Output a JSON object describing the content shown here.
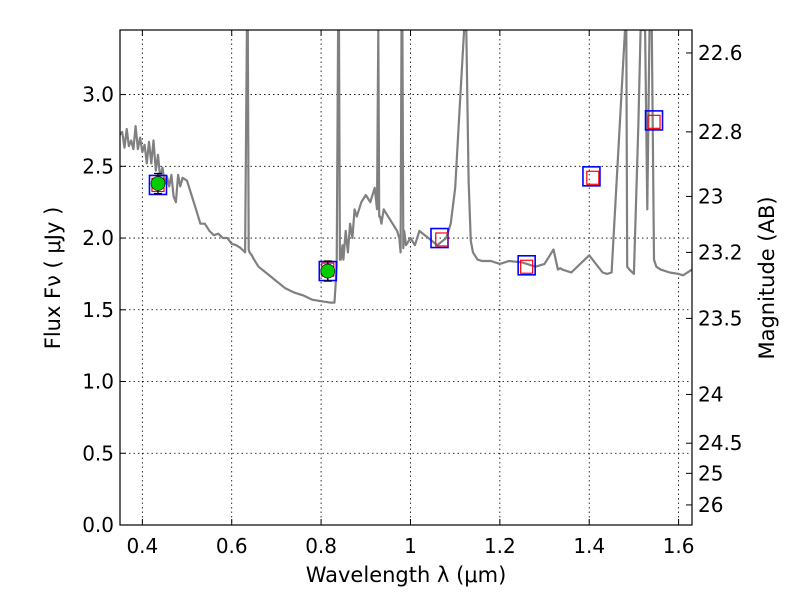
{
  "chart_data": {
    "type": "line",
    "xlabel": "Wavelength  λ (μm)",
    "ylabel": "Flux  Fν  ( μJy )",
    "ylabel2": "Magnitude (AB)",
    "xlim": [
      0.35,
      1.63
    ],
    "ylim": [
      0.0,
      3.45
    ],
    "grid": true,
    "x_ticks": [
      0.4,
      0.6,
      0.8,
      1.0,
      1.2,
      1.4,
      1.6
    ],
    "x_tick_labels": [
      "0.4",
      "0.6",
      "0.8",
      "1",
      "1.2",
      "1.4",
      "1.6"
    ],
    "y_ticks": [
      0.0,
      0.5,
      1.0,
      1.5,
      2.0,
      2.5,
      3.0
    ],
    "y_tick_labels": [
      "0.0",
      "0.5",
      "1.0",
      "1.5",
      "2.0",
      "2.5",
      "3.0"
    ],
    "mag_ticks": [
      {
        "label": "22.6",
        "flux": 3.29
      },
      {
        "label": "22.8",
        "flux": 2.74
      },
      {
        "label": "23",
        "flux": 2.29
      },
      {
        "label": "23.2",
        "flux": 1.9
      },
      {
        "label": "23.5",
        "flux": 1.44
      },
      {
        "label": "24",
        "flux": 0.91
      },
      {
        "label": "24.5",
        "flux": 0.57
      },
      {
        "label": "25",
        "flux": 0.36
      },
      {
        "label": "26",
        "flux": 0.14
      }
    ],
    "colors": {
      "model": "#808080",
      "model_points": "#0000ff",
      "observed": "#ff0000",
      "detections": "#00cc00"
    },
    "model_spectrum": {
      "x": [
        0.35,
        0.355,
        0.36,
        0.365,
        0.37,
        0.375,
        0.38,
        0.385,
        0.39,
        0.395,
        0.4,
        0.405,
        0.41,
        0.415,
        0.42,
        0.425,
        0.43,
        0.435,
        0.44,
        0.445,
        0.45,
        0.455,
        0.46,
        0.465,
        0.47,
        0.475,
        0.48,
        0.485,
        0.49,
        0.5,
        0.51,
        0.52,
        0.53,
        0.54,
        0.55,
        0.56,
        0.57,
        0.58,
        0.59,
        0.6,
        0.61,
        0.62,
        0.63,
        0.634,
        0.636,
        0.638,
        0.64,
        0.645,
        0.65,
        0.66,
        0.68,
        0.7,
        0.72,
        0.74,
        0.76,
        0.78,
        0.8,
        0.82,
        0.83,
        0.835,
        0.838,
        0.84,
        0.842,
        0.844,
        0.848,
        0.85,
        0.855,
        0.86,
        0.865,
        0.87,
        0.875,
        0.88,
        0.89,
        0.9,
        0.91,
        0.92,
        0.925,
        0.928,
        0.93,
        0.932,
        0.935,
        0.94,
        0.95,
        0.96,
        0.97,
        0.975,
        0.978,
        0.98,
        0.982,
        0.984,
        0.986,
        0.99,
        1.0,
        1.01,
        1.02,
        1.04,
        1.06,
        1.08,
        1.09,
        1.1,
        1.11,
        1.12,
        1.125,
        1.13,
        1.135,
        1.14,
        1.15,
        1.16,
        1.18,
        1.2,
        1.22,
        1.25,
        1.28,
        1.3,
        1.32,
        1.33,
        1.335,
        1.34,
        1.36,
        1.4,
        1.43,
        1.44,
        1.45,
        1.48,
        1.483,
        1.485,
        1.49,
        1.5,
        1.51,
        1.515,
        1.52,
        1.525,
        1.53,
        1.535,
        1.54,
        1.545,
        1.55,
        1.56,
        1.58,
        1.6,
        1.61,
        1.63
      ],
      "y": [
        2.72,
        2.74,
        2.63,
        2.76,
        2.64,
        2.68,
        2.62,
        2.78,
        2.62,
        2.7,
        2.6,
        2.65,
        2.52,
        2.67,
        2.52,
        2.68,
        2.47,
        2.58,
        2.42,
        2.49,
        2.38,
        2.43,
        2.36,
        2.44,
        2.29,
        2.25,
        2.44,
        2.36,
        2.42,
        2.4,
        2.3,
        2.2,
        2.1,
        2.1,
        2.05,
        2.02,
        2.03,
        2.0,
        2.0,
        1.96,
        1.95,
        1.93,
        1.9,
        3.45,
        3.45,
        1.92,
        1.9,
        1.88,
        1.85,
        1.8,
        1.75,
        1.7,
        1.65,
        1.62,
        1.6,
        1.57,
        1.56,
        1.55,
        1.55,
        1.8,
        3.45,
        3.45,
        1.85,
        1.85,
        1.95,
        1.85,
        2.05,
        1.9,
        2.1,
        2.0,
        2.2,
        2.15,
        2.25,
        2.3,
        2.25,
        2.35,
        2.2,
        3.45,
        2.15,
        2.15,
        2.1,
        2.2,
        2.15,
        2.1,
        2.05,
        2.0,
        1.9,
        3.45,
        3.45,
        1.93,
        2.05,
        1.95,
        2.0,
        1.95,
        2.05,
        2.0,
        1.95,
        2.0,
        2.1,
        2.35,
        2.9,
        3.45,
        3.45,
        2.4,
        1.98,
        1.9,
        1.85,
        1.84,
        1.84,
        1.82,
        1.84,
        1.83,
        1.8,
        1.82,
        1.92,
        1.78,
        1.79,
        1.78,
        1.76,
        1.88,
        1.76,
        1.75,
        1.76,
        3.45,
        3.45,
        1.8,
        1.78,
        1.75,
        2.8,
        3.45,
        3.45,
        3.45,
        2.2,
        3.45,
        3.45,
        1.85,
        1.8,
        1.78,
        1.76,
        1.75,
        1.74,
        1.78
      ]
    },
    "model_points": {
      "x": [
        0.435,
        0.815,
        1.065,
        1.26,
        1.405,
        1.545
      ],
      "y": [
        2.37,
        1.77,
        2.0,
        1.81,
        2.43,
        2.82
      ]
    },
    "observed_points": {
      "x": [
        0.435,
        0.815,
        1.07,
        1.26,
        1.408,
        1.545
      ],
      "y": [
        2.37,
        1.78,
        1.99,
        1.8,
        2.42,
        2.81
      ]
    },
    "detections": {
      "x": [
        0.435,
        0.815
      ],
      "y": [
        2.38,
        1.77
      ],
      "err": [
        0.07,
        0.07
      ]
    }
  }
}
